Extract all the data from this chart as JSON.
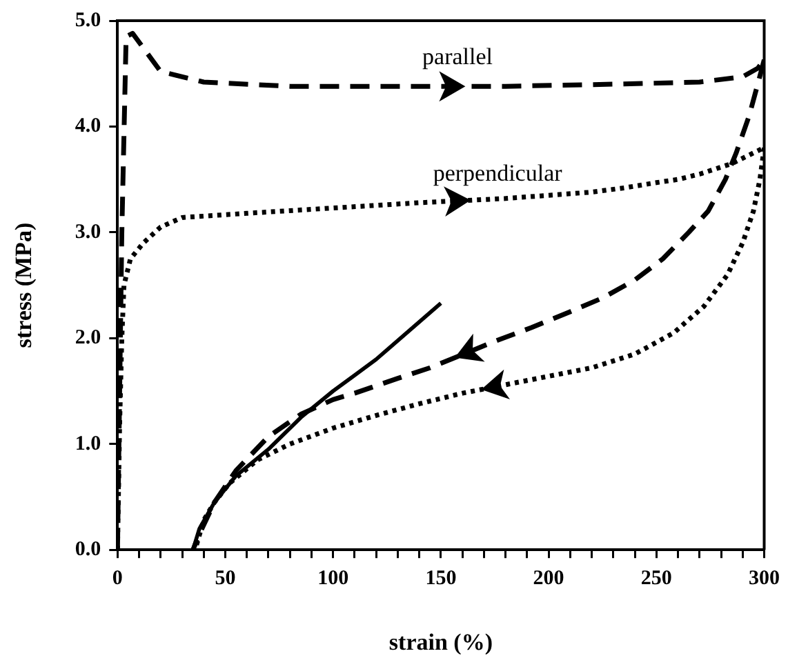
{
  "chart_data": {
    "type": "line",
    "xlabel": "strain (%)",
    "ylabel": "stress (MPa)",
    "xlim": [
      0,
      300
    ],
    "ylim": [
      0,
      5
    ],
    "xticks": [
      0,
      {
        "value": 10,
        "label": null
      },
      {
        "value": 20,
        "label": null
      },
      {
        "value": 30,
        "label": null
      },
      {
        "value": 40,
        "label": null
      },
      50,
      {
        "value": 60,
        "label": null
      },
      {
        "value": 70,
        "label": null
      },
      {
        "value": 80,
        "label": null
      },
      {
        "value": 90,
        "label": null
      },
      100,
      {
        "value": 110,
        "label": null
      },
      {
        "value": 120,
        "label": null
      },
      {
        "value": 130,
        "label": null
      },
      {
        "value": 140,
        "label": null
      },
      150,
      {
        "value": 160,
        "label": null
      },
      {
        "value": 170,
        "label": null
      },
      {
        "value": 180,
        "label": null
      },
      {
        "value": 190,
        "label": null
      },
      200,
      {
        "value": 210,
        "label": null
      },
      {
        "value": 220,
        "label": null
      },
      {
        "value": 230,
        "label": null
      },
      {
        "value": 240,
        "label": null
      },
      250,
      {
        "value": 260,
        "label": null
      },
      {
        "value": 270,
        "label": null
      },
      {
        "value": 280,
        "label": null
      },
      {
        "value": 290,
        "label": null
      },
      300
    ],
    "yticks": [
      {
        "value": 0,
        "label": "0.0"
      },
      {
        "value": 1,
        "label": "1.0"
      },
      {
        "value": 2,
        "label": "2.0"
      },
      {
        "value": 3,
        "label": "3.0"
      },
      {
        "value": 4,
        "label": "4.0"
      },
      {
        "value": 5,
        "label": "5.0"
      }
    ],
    "grid": false,
    "legend": false,
    "marker": "none",
    "series": [
      {
        "name": "parallel",
        "color": "#000000",
        "line_style": "dashed",
        "x": [
          0,
          2,
          4,
          7,
          20,
          40,
          80,
          135,
          180,
          230,
          270,
          290,
          297,
          300
        ],
        "values": [
          0,
          3,
          4.85,
          4.88,
          4.52,
          4.42,
          4.38,
          4.38,
          4.38,
          4.4,
          4.42,
          4.47,
          4.55,
          4.63
        ]
      },
      {
        "color": "#000000",
        "line_style": "dashed",
        "x": [
          300,
          297,
          293,
          287,
          282,
          274,
          265,
          253,
          240,
          225,
          210,
          192,
          175,
          145,
          130,
          120,
          110,
          100,
          85,
          70,
          55,
          45,
          38,
          35
        ],
        "values": [
          4.63,
          4.4,
          4.1,
          3.75,
          3.5,
          3.2,
          3.0,
          2.75,
          2.55,
          2.38,
          2.25,
          2.1,
          1.97,
          1.72,
          1.62,
          1.55,
          1.48,
          1.42,
          1.28,
          1.07,
          0.75,
          0.45,
          0.15,
          0
        ]
      },
      {
        "name": "perpendicular",
        "color": "#000000",
        "line_style": "dotted",
        "x": [
          0,
          1,
          2,
          3,
          6,
          12,
          20,
          30,
          60,
          100,
          140,
          180,
          200,
          220,
          235,
          250,
          260,
          270,
          285,
          300
        ],
        "values": [
          0,
          1.2,
          2.0,
          2.5,
          2.75,
          2.9,
          3.05,
          3.14,
          3.18,
          3.23,
          3.28,
          3.32,
          3.35,
          3.38,
          3.42,
          3.47,
          3.5,
          3.55,
          3.65,
          3.8
        ]
      },
      {
        "color": "#000000",
        "line_style": "dotted",
        "x": [
          300,
          298,
          295,
          290,
          283,
          272,
          258,
          240,
          220,
          200,
          185,
          160,
          140,
          120,
          100,
          80,
          65,
          52,
          45,
          40,
          36
        ],
        "values": [
          3.8,
          3.5,
          3.2,
          2.9,
          2.6,
          2.3,
          2.05,
          1.85,
          1.72,
          1.64,
          1.58,
          1.48,
          1.38,
          1.27,
          1.15,
          1.0,
          0.85,
          0.63,
          0.45,
          0.28,
          0
        ]
      },
      {
        "color": "#000000",
        "line_style": "solid",
        "x": [
          35,
          38,
          45,
          55,
          70,
          85,
          100,
          120,
          150
        ],
        "values": [
          0,
          0.2,
          0.45,
          0.7,
          0.95,
          1.25,
          1.5,
          1.8,
          2.33
        ]
      }
    ]
  }
}
